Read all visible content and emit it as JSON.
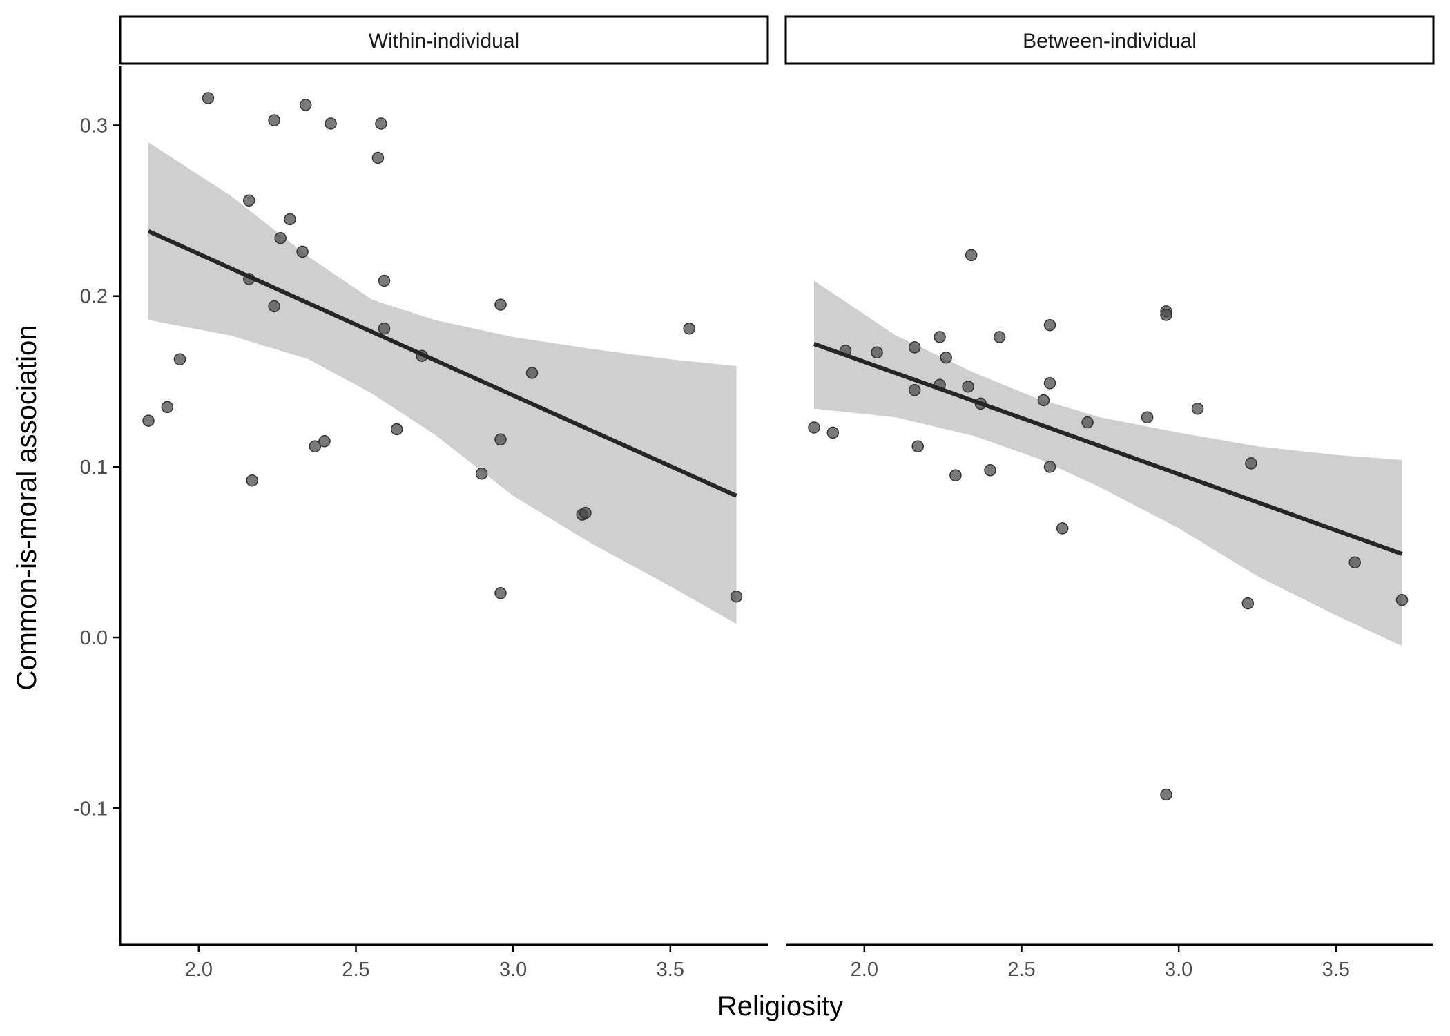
{
  "chart_data": {
    "type": "scatter",
    "facet_layout": "two panels side by side, shared y axis",
    "xlabel": "Religiosity",
    "ylabel": "Common-is-moral association",
    "xlim": [
      1.75,
      3.81
    ],
    "ylim": [
      -0.18,
      0.335
    ],
    "x_ticks": [
      {
        "value": 2.0,
        "label": "2.0"
      },
      {
        "value": 2.5,
        "label": "2.5"
      },
      {
        "value": 3.0,
        "label": "3.0"
      },
      {
        "value": 3.5,
        "label": "3.5"
      }
    ],
    "y_ticks": [
      {
        "value": -0.1,
        "label": "-0.1"
      },
      {
        "value": 0.0,
        "label": "0.0"
      },
      {
        "value": 0.1,
        "label": "0.1"
      },
      {
        "value": 0.2,
        "label": "0.2"
      },
      {
        "value": 0.3,
        "label": "0.3"
      }
    ],
    "grid": false,
    "legend": "none",
    "colors": {
      "points": "#4d4d4d",
      "fit_line": "#262626",
      "confidence_band": "#bfbfbf",
      "strip_border": "#000000",
      "axis": "#000000"
    },
    "panels": [
      {
        "strip_label": "Within-individual",
        "points": [
          [
            2.03,
            0.316
          ],
          [
            2.24,
            0.303
          ],
          [
            2.34,
            0.312
          ],
          [
            2.42,
            0.301
          ],
          [
            2.58,
            0.301
          ],
          [
            2.57,
            0.281
          ],
          [
            2.16,
            0.256
          ],
          [
            2.29,
            0.245
          ],
          [
            2.26,
            0.234
          ],
          [
            2.33,
            0.226
          ],
          [
            2.16,
            0.21
          ],
          [
            2.59,
            0.209
          ],
          [
            2.24,
            0.194
          ],
          [
            2.96,
            0.195
          ],
          [
            3.56,
            0.181
          ],
          [
            2.59,
            0.181
          ],
          [
            2.71,
            0.165
          ],
          [
            1.94,
            0.163
          ],
          [
            3.06,
            0.155
          ],
          [
            1.9,
            0.135
          ],
          [
            1.84,
            0.127
          ],
          [
            2.63,
            0.122
          ],
          [
            2.96,
            0.116
          ],
          [
            2.4,
            0.115
          ],
          [
            2.37,
            0.112
          ],
          [
            2.9,
            0.096
          ],
          [
            2.17,
            0.092
          ],
          [
            3.22,
            0.072
          ],
          [
            3.23,
            0.073
          ],
          [
            2.96,
            0.026
          ],
          [
            3.71,
            0.024
          ]
        ],
        "fit": {
          "x_start": 1.84,
          "y_start": 0.238,
          "x_end": 3.71,
          "y_end": 0.083
        },
        "band": [
          {
            "x": 1.84,
            "lower": 0.186,
            "upper": 0.29
          },
          {
            "x": 2.1,
            "lower": 0.177,
            "upper": 0.259
          },
          {
            "x": 2.35,
            "lower": 0.163,
            "upper": 0.223
          },
          {
            "x": 2.55,
            "lower": 0.143,
            "upper": 0.198
          },
          {
            "x": 2.75,
            "lower": 0.119,
            "upper": 0.186
          },
          {
            "x": 3.0,
            "lower": 0.083,
            "upper": 0.176
          },
          {
            "x": 3.25,
            "lower": 0.055,
            "upper": 0.169
          },
          {
            "x": 3.5,
            "lower": 0.03,
            "upper": 0.163
          },
          {
            "x": 3.71,
            "lower": 0.008,
            "upper": 0.159
          }
        ]
      },
      {
        "strip_label": "Between-individual",
        "points": [
          [
            2.34,
            0.224
          ],
          [
            2.96,
            0.191
          ],
          [
            2.96,
            0.189
          ],
          [
            2.59,
            0.183
          ],
          [
            2.24,
            0.176
          ],
          [
            2.43,
            0.176
          ],
          [
            2.16,
            0.17
          ],
          [
            1.94,
            0.168
          ],
          [
            2.04,
            0.167
          ],
          [
            2.26,
            0.164
          ],
          [
            2.59,
            0.149
          ],
          [
            2.24,
            0.148
          ],
          [
            2.33,
            0.147
          ],
          [
            2.16,
            0.145
          ],
          [
            2.57,
            0.139
          ],
          [
            2.37,
            0.137
          ],
          [
            3.06,
            0.134
          ],
          [
            2.9,
            0.129
          ],
          [
            2.71,
            0.126
          ],
          [
            1.84,
            0.123
          ],
          [
            1.9,
            0.12
          ],
          [
            2.17,
            0.112
          ],
          [
            3.23,
            0.102
          ],
          [
            2.59,
            0.1
          ],
          [
            2.4,
            0.098
          ],
          [
            2.29,
            0.095
          ],
          [
            2.63,
            0.064
          ],
          [
            3.56,
            0.044
          ],
          [
            3.22,
            0.02
          ],
          [
            3.71,
            0.022
          ],
          [
            2.96,
            -0.092
          ]
        ],
        "fit": {
          "x_start": 1.84,
          "y_start": 0.172,
          "x_end": 3.71,
          "y_end": 0.049
        },
        "band": [
          {
            "x": 1.84,
            "lower": 0.134,
            "upper": 0.209
          },
          {
            "x": 2.1,
            "lower": 0.129,
            "upper": 0.177
          },
          {
            "x": 2.35,
            "lower": 0.118,
            "upper": 0.155
          },
          {
            "x": 2.55,
            "lower": 0.105,
            "upper": 0.14
          },
          {
            "x": 2.75,
            "lower": 0.088,
            "upper": 0.129
          },
          {
            "x": 3.0,
            "lower": 0.064,
            "upper": 0.12
          },
          {
            "x": 3.25,
            "lower": 0.036,
            "upper": 0.112
          },
          {
            "x": 3.5,
            "lower": 0.013,
            "upper": 0.107
          },
          {
            "x": 3.71,
            "lower": -0.005,
            "upper": 0.104
          }
        ]
      }
    ]
  }
}
